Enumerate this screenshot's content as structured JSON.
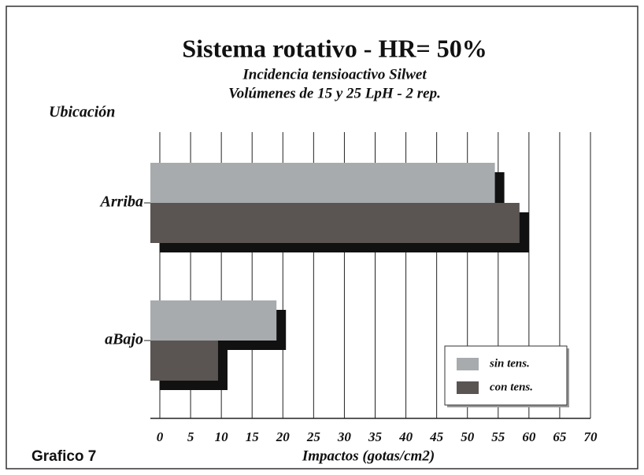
{
  "chart_data": {
    "type": "bar",
    "orientation": "horizontal",
    "title": "Sistema rotativo - HR= 50%",
    "subtitle": [
      "Incidencia tensioactivo Silwet",
      "Volúmenes de 15 y 25 LpH - 2 rep."
    ],
    "y_label": "Ubicación",
    "x_label": "Impactos (gotas/cm2)",
    "figure_label": "Grafico 7",
    "categories": [
      "Arriba",
      "aBajo"
    ],
    "series": [
      {
        "name": "sin tens.",
        "color": "#a7abae",
        "values": [
          56,
          20.5
        ]
      },
      {
        "name": "con tens.",
        "color": "#5a5553",
        "values": [
          60,
          11
        ]
      }
    ],
    "xlim": [
      0,
      70
    ],
    "xticks": [
      0,
      5,
      10,
      15,
      20,
      25,
      30,
      35,
      40,
      45,
      50,
      55,
      60,
      65,
      70
    ],
    "grid": true,
    "legend": "lower right"
  }
}
